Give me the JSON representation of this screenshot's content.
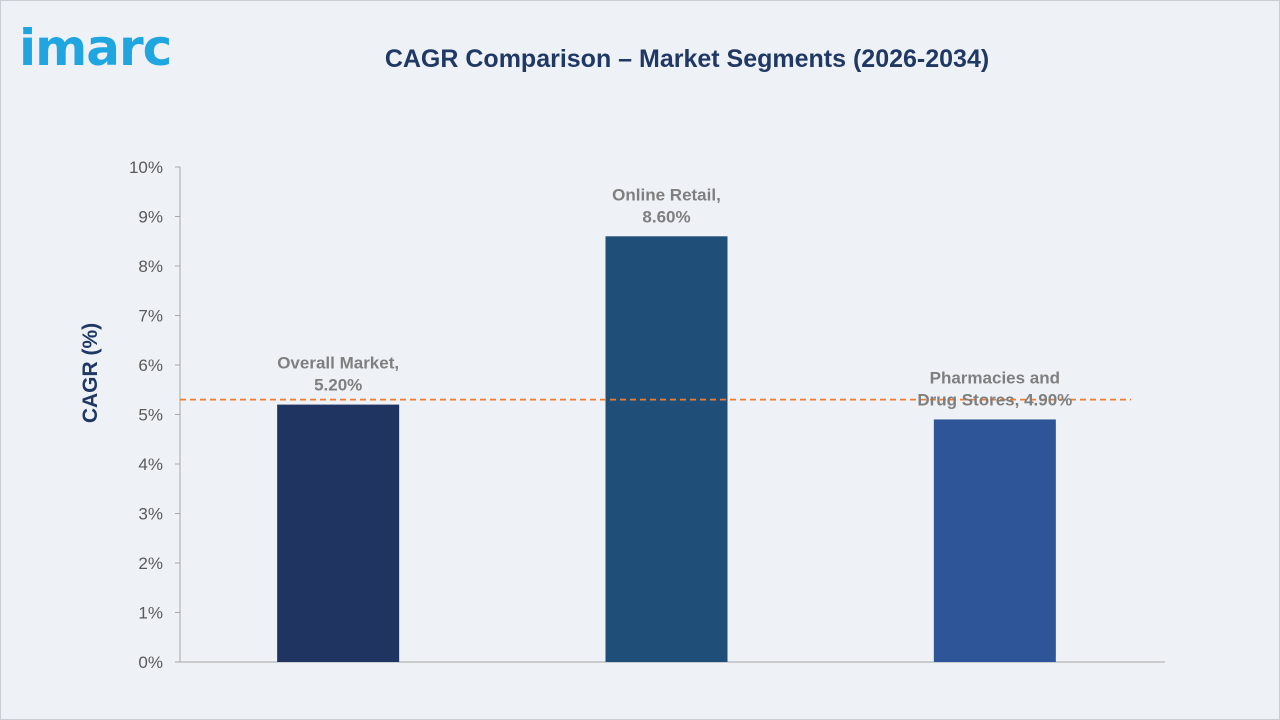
{
  "brand": {
    "logo_text": "imarc",
    "logo_color": "#1fa6e0"
  },
  "chart_data": {
    "type": "bar",
    "title": "CAGR Comparison – Market Segments (2026-2034)",
    "ylabel": "CAGR (%)",
    "xlabel": "",
    "ylim": [
      0,
      10
    ],
    "yticks": [
      "0%",
      "1%",
      "2%",
      "3%",
      "4%",
      "5%",
      "6%",
      "7%",
      "8%",
      "9%",
      "10%"
    ],
    "categories": [
      "Overall Market",
      "Online Retail",
      "Pharmacies and Drug Stores"
    ],
    "values": [
      5.2,
      8.6,
      4.9
    ],
    "data_labels": [
      [
        "Overall Market,",
        "5.20%"
      ],
      [
        "Online Retail,",
        "8.60%"
      ],
      [
        "Pharmacies and",
        "Drug Stores, 4.90%"
      ]
    ],
    "bar_colors": [
      "#1f3460",
      "#1f4e79",
      "#2e5597"
    ],
    "reference_line": {
      "value": 5.3,
      "style": "dashed",
      "color": "#ed7d31"
    },
    "grid": false,
    "legend": "none"
  }
}
